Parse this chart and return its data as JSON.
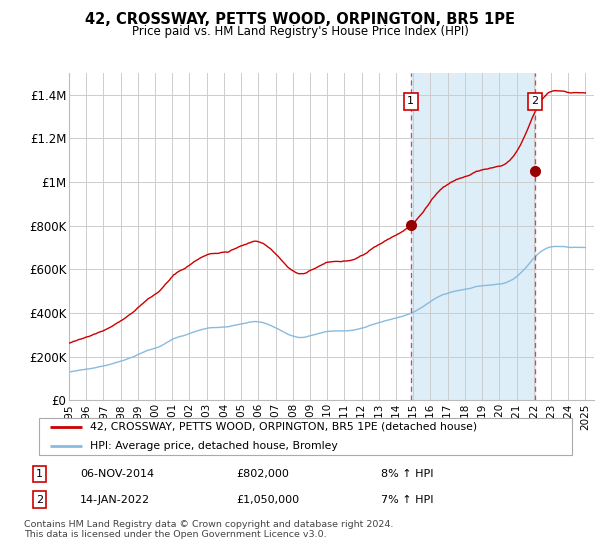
{
  "title": "42, CROSSWAY, PETTS WOOD, ORPINGTON, BR5 1PE",
  "subtitle": "Price paid vs. HM Land Registry's House Price Index (HPI)",
  "ylim": [
    0,
    1500000
  ],
  "xlim_start": 1995.0,
  "xlim_end": 2025.5,
  "yticks": [
    0,
    200000,
    400000,
    600000,
    800000,
    1000000,
    1200000,
    1400000
  ],
  "ytick_labels": [
    "£0",
    "£200K",
    "£400K",
    "£600K",
    "£800K",
    "£1M",
    "£1.2M",
    "£1.4M"
  ],
  "xtick_years": [
    1995,
    1996,
    1997,
    1998,
    1999,
    2000,
    2001,
    2002,
    2003,
    2004,
    2005,
    2006,
    2007,
    2008,
    2009,
    2010,
    2011,
    2012,
    2013,
    2014,
    2015,
    2016,
    2017,
    2018,
    2019,
    2020,
    2021,
    2022,
    2023,
    2024,
    2025
  ],
  "shade_start": 2014.85,
  "shade_end": 2022.05,
  "shade_color": "#ddeef8",
  "line1_color": "#cc0000",
  "line2_color": "#88bbdd",
  "marker1_x": 2014.85,
  "marker1_y": 802000,
  "marker2_x": 2022.05,
  "marker2_y": 1050000,
  "marker_color": "#990000",
  "dashed_line_color": "#dd4444",
  "annotation1_label": "1",
  "annotation2_label": "2",
  "legend1_label": "42, CROSSWAY, PETTS WOOD, ORPINGTON, BR5 1PE (detached house)",
  "legend2_label": "HPI: Average price, detached house, Bromley",
  "table_row1": [
    "1",
    "06-NOV-2014",
    "£802,000",
    "8% ↑ HPI"
  ],
  "table_row2": [
    "2",
    "14-JAN-2022",
    "£1,050,000",
    "7% ↑ HPI"
  ],
  "footer": "Contains HM Land Registry data © Crown copyright and database right 2024.\nThis data is licensed under the Open Government Licence v3.0.",
  "bg_color": "#ffffff",
  "grid_color": "#cccccc",
  "hpi_base_monthly": [
    130000,
    131500,
    133000,
    134500,
    136000,
    137500,
    139000,
    141000,
    143000,
    145500,
    148000,
    150500,
    153000,
    155500,
    158000,
    160500,
    163000,
    166000,
    169000,
    172000,
    175000,
    178500,
    182000,
    186000,
    190000,
    194000,
    198000,
    202000,
    207000,
    212000,
    217000,
    222000,
    227000,
    231000,
    235000,
    238000,
    241000,
    244000,
    248000,
    253000,
    258000,
    264000,
    270000,
    276000,
    282000,
    287000,
    291000,
    295000,
    298000,
    301000,
    304000,
    308000,
    312000,
    316000,
    320000,
    323000,
    326000,
    329000,
    332000,
    335000,
    337000,
    338000,
    339000,
    339500,
    340000,
    340500,
    341000,
    342000,
    343000,
    345000,
    347000,
    349000,
    351000,
    353000,
    355000,
    357000,
    359000,
    361000,
    363000,
    365000,
    366000,
    365000,
    363000,
    361000,
    358000,
    354000,
    350000,
    345000,
    340000,
    335000,
    330000,
    324000,
    318000,
    312000,
    307000,
    303000,
    299000,
    296000,
    294000,
    293000,
    293000,
    294000,
    296000,
    299000,
    302000,
    305000,
    308000,
    311000,
    313000,
    315000,
    317000,
    318000,
    319000,
    320000,
    320000,
    320000,
    320500,
    321000,
    321500,
    322000,
    323000,
    324000,
    326000,
    328000,
    330000,
    333000,
    336000,
    339000,
    342000,
    345000,
    348000,
    351000,
    354000,
    357000,
    360000,
    363000,
    366000,
    369000,
    372000,
    375000,
    378000,
    381000,
    384000,
    387000,
    390000,
    394000,
    398000,
    403000,
    408000,
    414000,
    420000,
    427000,
    434000,
    441000,
    448000,
    455000,
    462000,
    468000,
    474000,
    479000,
    484000,
    488000,
    492000,
    496000,
    499000,
    502000,
    504000,
    506000,
    508000,
    510000,
    512000,
    514000,
    516000,
    519000,
    522000,
    524000,
    526000,
    527000,
    528000,
    529000,
    530000,
    531000,
    532000,
    533000,
    534000,
    535000,
    537000,
    540000,
    544000,
    549000,
    555000,
    562000,
    570000,
    579000,
    589000,
    600000,
    612000,
    625000,
    638000,
    650000,
    661000,
    671000,
    679000,
    686000,
    692000,
    697000,
    700000,
    702000,
    703000,
    703000,
    703000,
    703000,
    703000,
    702000,
    701000,
    700000,
    700000,
    700000,
    700000,
    700000,
    700000,
    700000
  ],
  "sale1_year": 2014.85,
  "sale1_price": 802000,
  "sale2_year": 2022.05,
  "sale2_price": 1050000
}
